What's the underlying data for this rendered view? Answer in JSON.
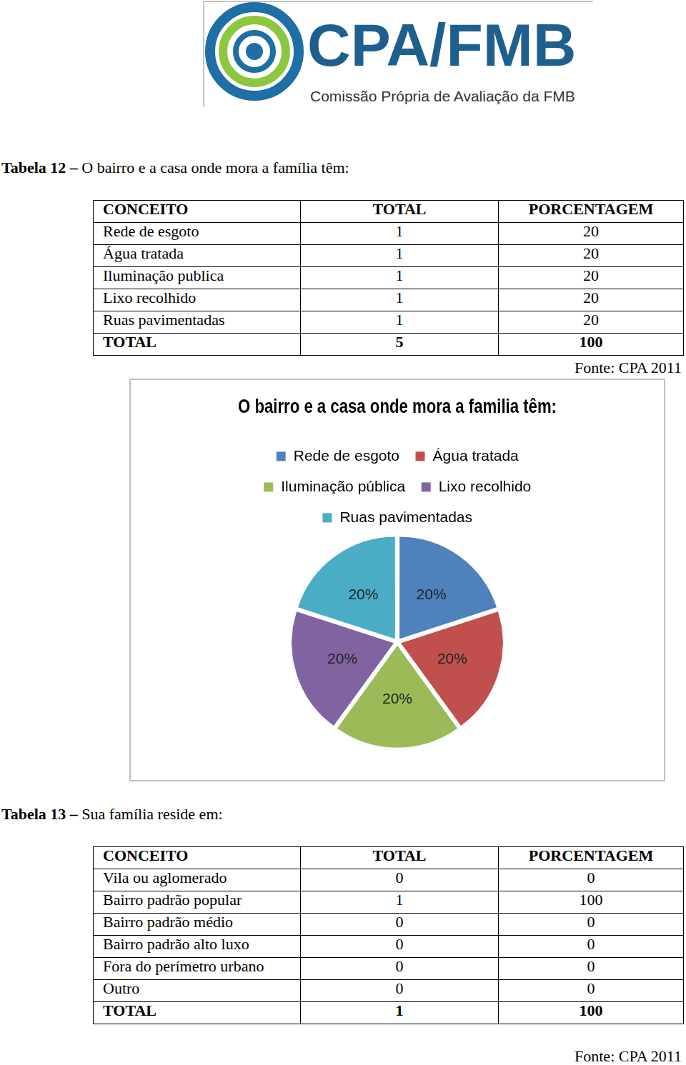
{
  "header": {
    "logo": "CPA/FMB",
    "subtitle": "Comissão Própria de Avaliação da FMB"
  },
  "tables": [
    {
      "label": "Tabela 12 –",
      "caption": "O bairro e a casa onde mora a família têm:",
      "columns": [
        "CONCEITO",
        "TOTAL",
        "PORCENTAGEM"
      ],
      "rows": [
        [
          "Rede de esgoto",
          1,
          20
        ],
        [
          "Água tratada",
          1,
          20
        ],
        [
          "Iluminação publica",
          1,
          20
        ],
        [
          "Lixo recolhido",
          1,
          20
        ],
        [
          "Ruas pavimentadas",
          1,
          20
        ],
        [
          "TOTAL",
          5,
          100
        ]
      ],
      "source": "Fonte: CPA 2011"
    },
    {
      "label": "Tabela 13 –",
      "caption": "Sua família reside em:",
      "columns": [
        "CONCEITO",
        "TOTAL",
        "PORCENTAGEM"
      ],
      "rows": [
        [
          "Vila ou aglomerado",
          0,
          0
        ],
        [
          "Bairro padrão popular",
          1,
          100
        ],
        [
          "Bairro padrão médio",
          0,
          0
        ],
        [
          "Bairro padrão alto luxo",
          0,
          0
        ],
        [
          "Fora do perímetro urbano",
          0,
          0
        ],
        [
          "Outro",
          0,
          0
        ],
        [
          "TOTAL",
          1,
          100
        ]
      ],
      "source": "Fonte: CPA 2011"
    }
  ],
  "chart_data": {
    "type": "pie",
    "title": "O bairro e a casa onde mora a familia têm:",
    "categories": [
      "Rede de esgoto",
      "Água tratada",
      "Iluminação pública",
      "Lixo recolhido",
      "Ruas pavimentadas"
    ],
    "values": [
      20,
      20,
      20,
      20,
      20
    ],
    "value_labels": [
      "20%",
      "20%",
      "20%",
      "20%",
      "20%"
    ],
    "colors": [
      "#4f81bd",
      "#c0504d",
      "#9bbb59",
      "#8064a2",
      "#4bacc6"
    ],
    "legend": "top",
    "data_labels": true
  }
}
